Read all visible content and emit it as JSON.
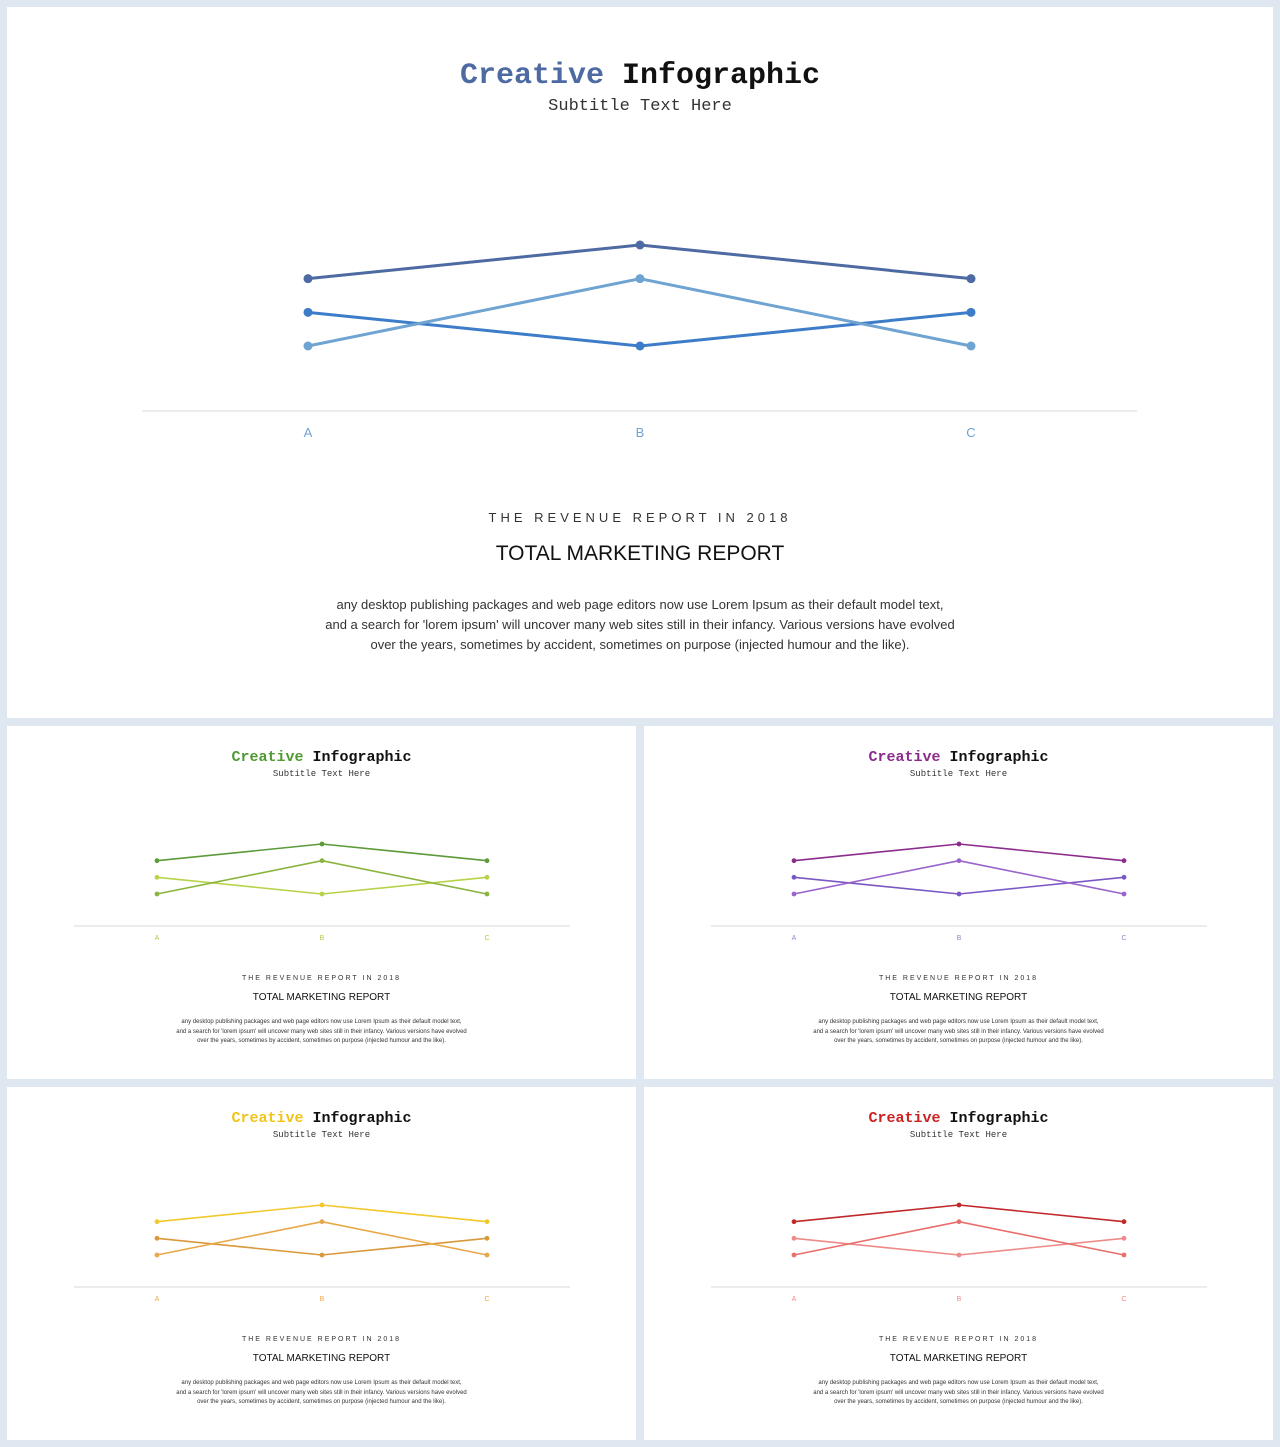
{
  "slides": [
    {
      "title_colored": "Creative",
      "title_plain": "Infographic",
      "subtitle": "Subtitle Text Here",
      "kicker": "THE REVENUE REPORT IN 2018",
      "heading": "TOTAL MARKETING REPORT",
      "body_lines": [
        "any desktop publishing packages and web page editors now use Lorem Ipsum as their default model text,",
        "and a search for 'lorem ipsum' will uncover many web sites still in their infancy. Various versions have evolved",
        "over the years, sometimes by accident, sometimes on purpose (injected humour and the like)."
      ],
      "colors": {
        "accent": "#4e6aa2",
        "series": [
          "#4e6aa2",
          "#3d7cc9",
          "#6fa3d2"
        ],
        "tick": "#6fa3d2"
      }
    },
    {
      "title_colored": "Creative",
      "title_plain": "Infographic",
      "subtitle": "Subtitle Text Here",
      "kicker": "THE REVENUE REPORT IN 2018",
      "heading": "TOTAL MARKETING REPORT",
      "body_lines": [
        "any desktop publishing packages and web page editors now use Lorem Ipsum as their default model text,",
        "and a search for 'lorem ipsum' will uncover many web sites still in their infancy. Various versions have evolved",
        "over the years, sometimes by accident, sometimes on purpose (injected humour and the like)."
      ],
      "colors": {
        "accent": "#4f9a32",
        "series": [
          "#5c9a3a",
          "#b7d34a",
          "#8ab43f"
        ],
        "tick": "#b7c84a"
      }
    },
    {
      "title_colored": "Creative",
      "title_plain": "Infographic",
      "subtitle": "Subtitle Text Here",
      "kicker": "THE REVENUE REPORT IN 2018",
      "heading": "TOTAL MARKETING REPORT",
      "body_lines": [
        "any desktop publishing packages and web page editors now use Lorem Ipsum as their default model text,",
        "and a search for 'lorem ipsum' will uncover many web sites still in their infancy. Various versions have evolved",
        "over the years, sometimes by accident, sometimes on purpose (injected humour and the like)."
      ],
      "colors": {
        "accent": "#8b2c8c",
        "series": [
          "#8b2c8c",
          "#7a57c6",
          "#9a64cc"
        ],
        "tick": "#9a7fd0"
      }
    },
    {
      "title_colored": "Creative",
      "title_plain": "Infographic",
      "subtitle": "Subtitle Text Here",
      "kicker": "THE REVENUE REPORT IN 2018",
      "heading": "TOTAL MARKETING REPORT",
      "body_lines": [
        "any desktop publishing packages and web page editors now use Lorem Ipsum as their default model text,",
        "and a search for 'lorem ipsum' will uncover many web sites still in their infancy. Various versions have evolved",
        "over the years, sometimes by accident, sometimes on purpose (injected humour and the like)."
      ],
      "colors": {
        "accent": "#f2c418",
        "series": [
          "#f2c82a",
          "#d9983a",
          "#e8a84a"
        ],
        "tick": "#f0a84a"
      }
    },
    {
      "title_colored": "Creative",
      "title_plain": "Infographic",
      "subtitle": "Subtitle Text Here",
      "kicker": "THE REVENUE REPORT IN 2018",
      "heading": "TOTAL MARKETING REPORT",
      "body_lines": [
        "any desktop publishing packages and web page editors now use Lorem Ipsum as their default model text,",
        "and a search for 'lorem ipsum' will uncover many web sites still in their infancy. Various versions have evolved",
        "over the years, sometimes by accident, sometimes on purpose (injected humour and the like)."
      ],
      "colors": {
        "accent": "#cc2222",
        "series": [
          "#c0282a",
          "#ee8a88",
          "#e86f6c"
        ],
        "tick": "#ee8a88"
      }
    }
  ],
  "chart_data": [
    {
      "type": "line",
      "categories": [
        "A",
        "B",
        "C"
      ],
      "series": [
        {
          "values": [
            4,
            5,
            4
          ]
        },
        {
          "values": [
            3,
            2,
            3
          ]
        },
        {
          "values": [
            2,
            4,
            2
          ]
        }
      ],
      "ylim": [
        0,
        6
      ],
      "grid": false
    },
    {
      "type": "line",
      "categories": [
        "A",
        "B",
        "C"
      ],
      "series": [
        {
          "values": [
            4,
            5,
            4
          ]
        },
        {
          "values": [
            3,
            2,
            3
          ]
        },
        {
          "values": [
            2,
            4,
            2
          ]
        }
      ],
      "ylim": [
        0,
        6
      ],
      "grid": false
    },
    {
      "type": "line",
      "categories": [
        "A",
        "B",
        "C"
      ],
      "series": [
        {
          "values": [
            4,
            5,
            4
          ]
        },
        {
          "values": [
            3,
            2,
            3
          ]
        },
        {
          "values": [
            2,
            4,
            2
          ]
        }
      ],
      "ylim": [
        0,
        6
      ],
      "grid": false
    },
    {
      "type": "line",
      "categories": [
        "A",
        "B",
        "C"
      ],
      "series": [
        {
          "values": [
            4,
            5,
            4
          ]
        },
        {
          "values": [
            3,
            2,
            3
          ]
        },
        {
          "values": [
            2,
            4,
            2
          ]
        }
      ],
      "ylim": [
        0,
        6
      ],
      "grid": false
    },
    {
      "type": "line",
      "categories": [
        "A",
        "B",
        "C"
      ],
      "series": [
        {
          "values": [
            4,
            5,
            4
          ]
        },
        {
          "values": [
            3,
            2,
            3
          ]
        },
        {
          "values": [
            2,
            4,
            2
          ]
        }
      ],
      "ylim": [
        0,
        6
      ],
      "grid": false
    }
  ]
}
